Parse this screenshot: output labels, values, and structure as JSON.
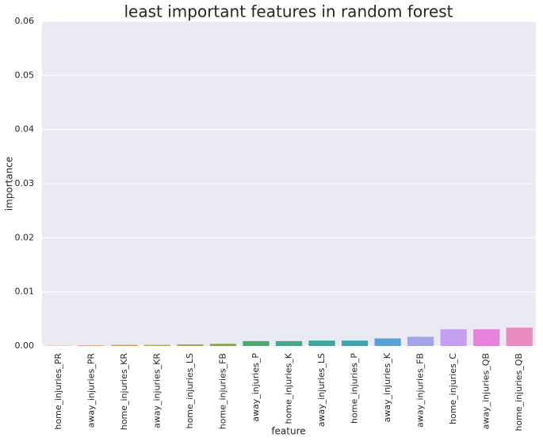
{
  "chart_data": {
    "type": "bar",
    "title": "least important features in random forest",
    "x_label": "feature",
    "y_label": "importance",
    "categories": [
      "home_injuries_PR",
      "away_injuries_PR",
      "home_injuries_KR",
      "away_injuries_KR",
      "home_injuries_LS",
      "home_injuries_FB",
      "away_injuries_P",
      "home_injuries_K",
      "away_injuries_LS",
      "home_injuries_P",
      "away_injuries_K",
      "away_injuries_FB",
      "home_injuries_C",
      "away_injuries_QB",
      "home_injuries_QB"
    ],
    "values": [
      5e-05,
      0.0001,
      0.0002,
      0.0002,
      0.0003,
      0.0004,
      0.0009,
      0.0009,
      0.001,
      0.001,
      0.0014,
      0.0017,
      0.0031,
      0.0031,
      0.0034
    ],
    "colors": [
      "#e3818e",
      "#d6906a",
      "#c59a52",
      "#b1a147",
      "#a1a548",
      "#7fa84a",
      "#4aa96c",
      "#3ea889",
      "#3ea69c",
      "#40a4ae",
      "#5aa0d4",
      "#a4a3e4",
      "#c59ef0",
      "#e683df",
      "#e88cbf"
    ],
    "ylim": [
      0,
      0.06
    ],
    "yticks": [
      {
        "value": 0,
        "label": "0.00"
      },
      0.01,
      0.02,
      0.03,
      0.04,
      0.05,
      0.06
    ],
    "grid": true
  }
}
